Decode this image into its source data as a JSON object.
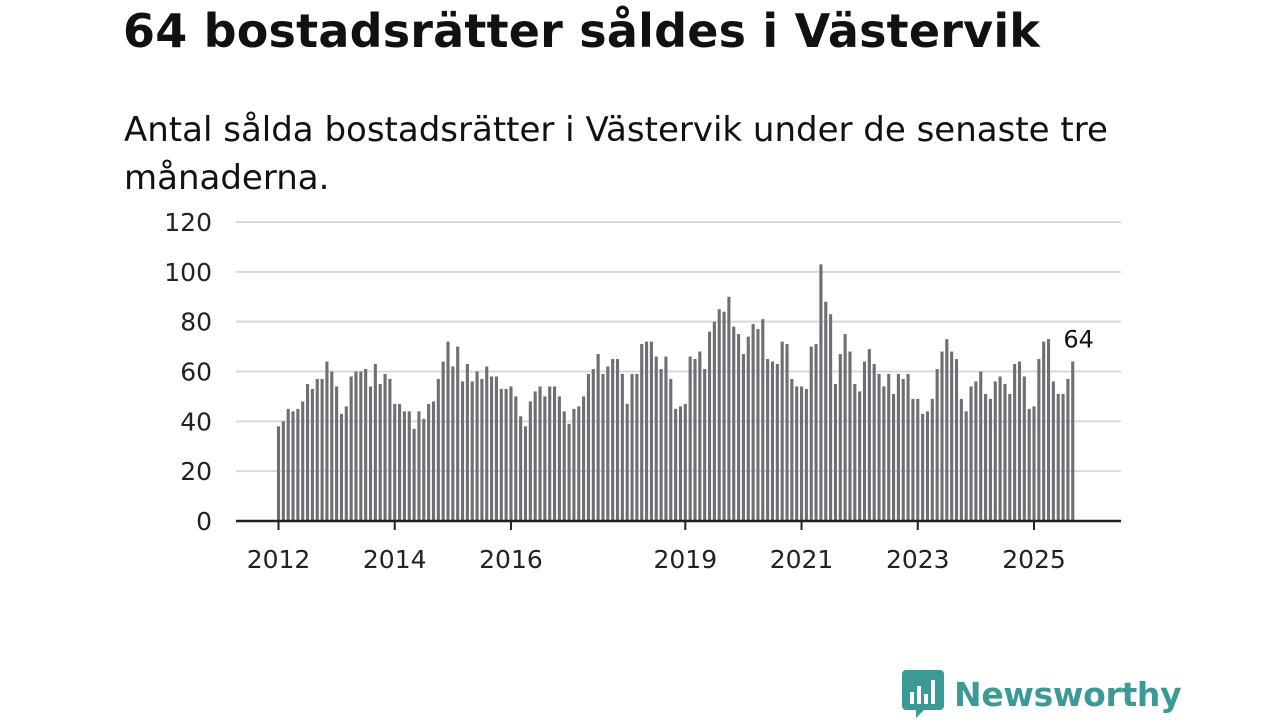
{
  "header": {
    "title": "64 bostadsrätter såldes i Västervik",
    "subtitle": "Antal sålda bostadsrätter i Västervik under de senaste tre månaderna."
  },
  "branding": {
    "name": "Newsworthy",
    "icon": "newsworthy-logo-icon",
    "color": "#3c9a95"
  },
  "colors": {
    "bar": "#6e6e74",
    "highlight": "#16a6a3",
    "grid": "#d9d9d9",
    "axis": "#222222"
  },
  "chart_data": {
    "type": "bar",
    "title": "64 bostadsrätter såldes i Västervik",
    "xlabel": "",
    "ylabel": "",
    "ylim": [
      0,
      120
    ],
    "yticks": [
      0,
      20,
      40,
      60,
      80,
      100,
      120
    ],
    "grid": true,
    "first_period": "2012-01",
    "x_tick_labels": [
      {
        "label": "2012",
        "index": 0
      },
      {
        "label": "2014",
        "index": 24
      },
      {
        "label": "2016",
        "index": 48
      },
      {
        "label": "2019",
        "index": 84
      },
      {
        "label": "2021",
        "index": 108
      },
      {
        "label": "2023",
        "index": 132
      },
      {
        "label": "2025",
        "index": 156
      }
    ],
    "values": [
      38,
      40,
      45,
      44,
      45,
      48,
      55,
      53,
      57,
      57,
      64,
      60,
      54,
      43,
      46,
      58,
      60,
      60,
      61,
      54,
      63,
      55,
      59,
      57,
      47,
      47,
      44,
      44,
      37,
      44,
      41,
      47,
      48,
      57,
      64,
      72,
      62,
      70,
      56,
      63,
      56,
      60,
      57,
      62,
      58,
      58,
      53,
      53,
      54,
      50,
      42,
      38,
      48,
      52,
      54,
      50,
      54,
      54,
      50,
      44,
      39,
      45,
      46,
      50,
      59,
      61,
      67,
      59,
      62,
      65,
      65,
      59,
      47,
      59,
      59,
      71,
      72,
      72,
      66,
      61,
      66,
      57,
      45,
      46,
      47,
      66,
      65,
      68,
      61,
      76,
      80,
      85,
      84,
      90,
      78,
      75,
      67,
      74,
      79,
      77,
      81,
      65,
      64,
      63,
      72,
      71,
      57,
      54,
      54,
      53,
      70,
      71,
      103,
      88,
      83,
      55,
      67,
      75,
      68,
      55,
      52,
      64,
      69,
      63,
      59,
      54,
      59,
      51,
      59,
      57,
      59,
      49,
      49,
      43,
      44,
      49,
      61,
      68,
      73,
      68,
      65,
      49,
      44,
      54,
      56,
      60,
      51,
      49,
      56,
      58,
      55,
      51,
      63,
      64,
      58,
      45,
      46,
      65,
      72,
      73,
      56,
      51,
      51,
      57,
      64
    ],
    "highlight_index": 165,
    "annotation": {
      "label": "64",
      "index": 165,
      "value": 64
    }
  }
}
